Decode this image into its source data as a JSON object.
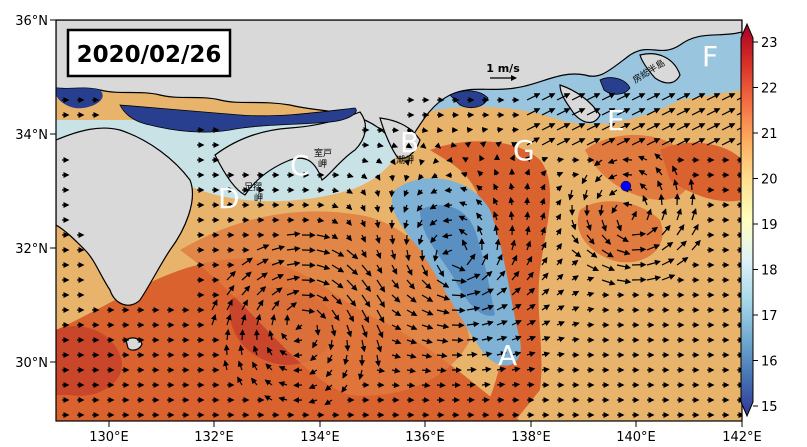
{
  "date_label": "2020/02/26",
  "scale_arrow_label": "1 m/s",
  "lat_ticks": [
    "36°N",
    "34°N",
    "32°N",
    "30°N"
  ],
  "lon_ticks": [
    "130°E",
    "132°E",
    "134°E",
    "136°E",
    "138°E",
    "140°E",
    "142°E"
  ],
  "colorbar": {
    "ticks": [
      "23",
      "22",
      "21",
      "20",
      "19",
      "18",
      "17",
      "16",
      "15"
    ],
    "min": 15,
    "max": 23,
    "colors": [
      "#313695",
      "#4575b4",
      "#74add1",
      "#abd9e9",
      "#e0f3f8",
      "#ffffbf",
      "#fee090",
      "#fdae61",
      "#f46d43",
      "#d73027",
      "#a50026"
    ]
  },
  "region_letters": [
    "A",
    "B",
    "C",
    "D",
    "E",
    "F",
    "G"
  ],
  "place_names": {
    "muroto": "室戸\n岬",
    "ashizuri": "足摺\n岬",
    "shiono": "潮岬",
    "boso": "房総半島"
  },
  "marker": {
    "color": "#0000ff",
    "lon": 139.8,
    "lat": 33.1
  },
  "land_color": "#d9d9d9",
  "map_extent": {
    "lon": [
      129,
      142
    ],
    "lat": [
      29,
      36
    ]
  }
}
